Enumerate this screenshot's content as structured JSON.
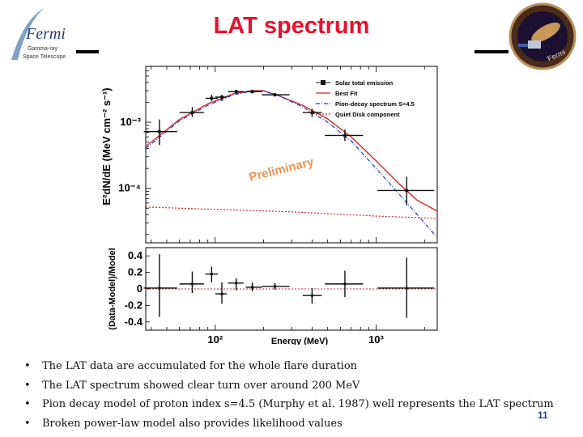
{
  "slide": {
    "title": "LAT spectrum",
    "page_number": "11",
    "logo_left": {
      "name": "Fermi",
      "line1": "Gamma-ray",
      "line2": "Space Telescope"
    },
    "logo_right": {
      "name": "Fermi"
    },
    "bullets": [
      "The LAT data are accumulated for the whole flare duration",
      "The LAT spectrum showed clear turn over around 200 MeV",
      "Pion decay model of proton index s=4.5 (Murphy et al. 1987) well represents the LAT spectrum",
      "Broken power-law model also provides likelihood values"
    ],
    "colors": {
      "title": "#e8112d",
      "page_number": "#1f3e9a",
      "best_fit": "#d62728",
      "pion": "#1f3fbf",
      "quiet_disk": "#d62728",
      "stamp": "#f08030"
    }
  },
  "chart_data": {
    "type": "scatter",
    "x_scale": "log",
    "y_scale": "log",
    "xlabel": "Energy (MeV)",
    "ylabel": "E²dN/dE (MeV cm⁻² s⁻¹)",
    "residual_ylabel": "(Data-Model)/Model",
    "x_ticks": [
      {
        "value": 100,
        "label": "10²"
      },
      {
        "value": 1000,
        "label": "10³"
      }
    ],
    "y_ticks": [
      {
        "value": 0.001,
        "label": "10⁻³"
      },
      {
        "value": 0.0001,
        "label": "10⁻⁴"
      }
    ],
    "residual_ticks": [
      "0.4",
      "0.2",
      "0",
      "-0.2",
      "-0.4"
    ],
    "xlim": [
      37,
      2400
    ],
    "ylim": [
      1.5e-05,
      0.007
    ],
    "residual_ylim": [
      -0.5,
      0.5
    ],
    "stamp": "Preliminary",
    "legend": [
      {
        "label": "Solar total emission",
        "style": "marker"
      },
      {
        "label": "Best Fit",
        "style": "solid-red"
      },
      {
        "label": "Pion-decay spectrum S=4.5",
        "style": "dashdot-blue"
      },
      {
        "label": "Quiet Disk component",
        "style": "dashed-red"
      }
    ],
    "data_points": [
      {
        "x": 45,
        "x_lo": 36,
        "x_hi": 58,
        "y": 0.00072,
        "y_lo": 0.00045,
        "y_hi": 0.0011
      },
      {
        "x": 72,
        "x_lo": 60,
        "x_hi": 85,
        "y": 0.0014,
        "y_lo": 0.0012,
        "y_hi": 0.0017
      },
      {
        "x": 95,
        "x_lo": 87,
        "x_hi": 104,
        "y": 0.0023,
        "y_lo": 0.0021,
        "y_hi": 0.0026
      },
      {
        "x": 110,
        "x_lo": 100,
        "x_hi": 118,
        "y": 0.0024,
        "y_lo": 0.0021,
        "y_hi": 0.0026
      },
      {
        "x": 135,
        "x_lo": 120,
        "x_hi": 150,
        "y": 0.0029,
        "y_lo": 0.0028,
        "y_hi": 0.0031
      },
      {
        "x": 170,
        "x_lo": 155,
        "x_hi": 195,
        "y": 0.0029,
        "y_lo": 0.0028,
        "y_hi": 0.0031
      },
      {
        "x": 235,
        "x_lo": 195,
        "x_hi": 290,
        "y": 0.0026,
        "y_lo": 0.0025,
        "y_hi": 0.0027
      },
      {
        "x": 400,
        "x_lo": 350,
        "x_hi": 460,
        "y": 0.0014,
        "y_lo": 0.0012,
        "y_hi": 0.0016
      },
      {
        "x": 640,
        "x_lo": 480,
        "x_hi": 830,
        "y": 0.00063,
        "y_lo": 0.00052,
        "y_hi": 0.00078
      },
      {
        "x": 1550,
        "x_lo": 1020,
        "x_hi": 2300,
        "y": 9.25e-05,
        "y_lo": 5.5e-05,
        "y_hi": 0.00015
      }
    ],
    "residual_points": [
      {
        "x": 45,
        "x_lo": 36,
        "x_hi": 58,
        "y": 0.01,
        "y_lo": -0.34,
        "y_hi": 0.42
      },
      {
        "x": 72,
        "x_lo": 60,
        "x_hi": 85,
        "y": 0.06,
        "y_lo": -0.05,
        "y_hi": 0.21
      },
      {
        "x": 95,
        "x_lo": 87,
        "x_hi": 104,
        "y": 0.18,
        "y_lo": 0.08,
        "y_hi": 0.27
      },
      {
        "x": 110,
        "x_lo": 100,
        "x_hi": 118,
        "y": -0.06,
        "y_lo": -0.18,
        "y_hi": 0.08
      },
      {
        "x": 135,
        "x_lo": 120,
        "x_hi": 150,
        "y": 0.07,
        "y_lo": -0.02,
        "y_hi": 0.13
      },
      {
        "x": 170,
        "x_lo": 155,
        "x_hi": 195,
        "y": 0.02,
        "y_lo": -0.03,
        "y_hi": 0.08
      },
      {
        "x": 235,
        "x_lo": 195,
        "x_hi": 290,
        "y": 0.03,
        "y_lo": -0.01,
        "y_hi": 0.07
      },
      {
        "x": 400,
        "x_lo": 350,
        "x_hi": 460,
        "y": -0.08,
        "y_lo": -0.18,
        "y_hi": 0.01
      },
      {
        "x": 640,
        "x_lo": 480,
        "x_hi": 830,
        "y": 0.06,
        "y_lo": -0.1,
        "y_hi": 0.22
      },
      {
        "x": 1550,
        "x_lo": 1020,
        "x_hi": 2300,
        "y": 0.01,
        "y_lo": -0.35,
        "y_hi": 0.38
      }
    ],
    "series": [
      {
        "name": "Best Fit",
        "points": [
          [
            37,
            0.00043
          ],
          [
            60,
            0.0011
          ],
          [
            90,
            0.0019
          ],
          [
            130,
            0.0027
          ],
          [
            170,
            0.003
          ],
          [
            200,
            0.003
          ],
          [
            250,
            0.0025
          ],
          [
            350,
            0.0018
          ],
          [
            500,
            0.00112
          ],
          [
            700,
            0.0006
          ],
          [
            1000,
            0.00026
          ],
          [
            1400,
            0.000115
          ],
          [
            1800,
            6.6e-05
          ],
          [
            2400,
            4.5e-05
          ]
        ]
      },
      {
        "name": "Pion-decay spectrum S=4.5",
        "points": [
          [
            37,
            0.0004
          ],
          [
            60,
            0.00105
          ],
          [
            90,
            0.0018
          ],
          [
            130,
            0.0026
          ],
          [
            170,
            0.00295
          ],
          [
            200,
            0.00295
          ],
          [
            250,
            0.0025
          ],
          [
            350,
            0.0017
          ],
          [
            500,
            0.001
          ],
          [
            700,
            0.00052
          ],
          [
            1000,
            0.0002
          ],
          [
            1400,
            8e-05
          ],
          [
            1800,
            4e-05
          ],
          [
            2100,
            2.6e-05
          ],
          [
            2400,
            1.8e-05
          ]
        ]
      },
      {
        "name": "Quiet Disk component",
        "points": [
          [
            37,
            5.2e-05
          ],
          [
            100,
            4.8e-05
          ],
          [
            300,
            4.4e-05
          ],
          [
            1000,
            3.8e-05
          ],
          [
            2400,
            3.5e-05
          ]
        ]
      }
    ]
  }
}
